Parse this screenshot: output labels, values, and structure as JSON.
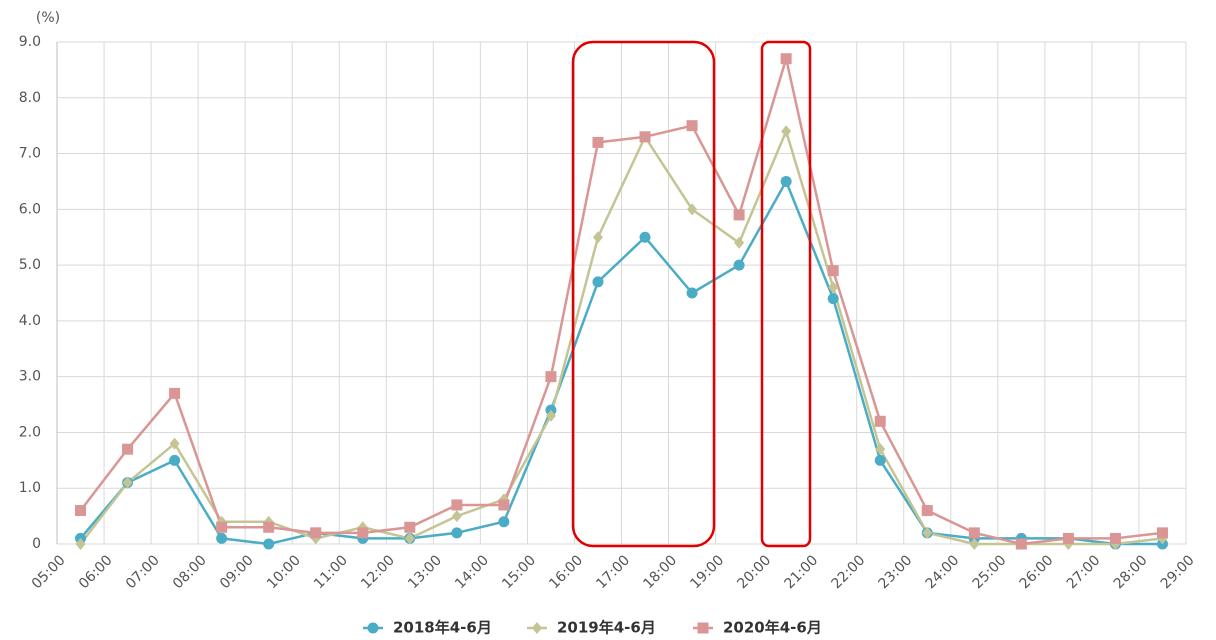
{
  "chart_data": {
    "type": "line",
    "y_unit_label": "(%)",
    "x": [
      5.5,
      6.5,
      7.5,
      8.5,
      9.5,
      10.5,
      11.5,
      12.5,
      13.5,
      14.5,
      15.5,
      16.5,
      17.5,
      18.5,
      19.5,
      20.5,
      21.5,
      22.5,
      23.5,
      24.5,
      25.5,
      26.5,
      27.5,
      28.5
    ],
    "series": [
      {
        "name": "2018年4-6月",
        "color": "#4bacc6",
        "marker": "circle",
        "values": [
          0.1,
          1.1,
          1.5,
          0.1,
          0.0,
          0.2,
          0.1,
          0.1,
          0.2,
          0.4,
          2.4,
          4.7,
          5.5,
          4.5,
          5.0,
          6.5,
          4.4,
          1.5,
          0.2,
          0.1,
          0.1,
          0.1,
          0.0,
          0.0
        ]
      },
      {
        "name": "2019年4-6月",
        "color": "#c4c494",
        "marker": "diamond",
        "values": [
          0.0,
          1.1,
          1.8,
          0.4,
          0.4,
          0.1,
          0.3,
          0.1,
          0.5,
          0.8,
          2.3,
          5.5,
          7.3,
          6.0,
          5.4,
          7.4,
          4.6,
          1.7,
          0.2,
          0.0,
          0.0,
          0.0,
          0.0,
          0.1
        ]
      },
      {
        "name": "2020年4-6月",
        "color": "#d99694",
        "marker": "square",
        "values": [
          0.6,
          1.7,
          2.7,
          0.3,
          0.3,
          0.2,
          0.2,
          0.3,
          0.7,
          0.7,
          3.0,
          7.2,
          7.3,
          7.5,
          5.9,
          8.7,
          4.9,
          2.2,
          0.6,
          0.2,
          0.0,
          0.1,
          0.1,
          0.2
        ]
      }
    ],
    "xlim": [
      5,
      29
    ],
    "xticks": [
      {
        "value": 5,
        "label": "05:00"
      },
      {
        "value": 6,
        "label": "06:00"
      },
      {
        "value": 7,
        "label": "07:00"
      },
      {
        "value": 8,
        "label": "08:00"
      },
      {
        "value": 9,
        "label": "09:00"
      },
      {
        "value": 10,
        "label": "10:00"
      },
      {
        "value": 11,
        "label": "11:00"
      },
      {
        "value": 12,
        "label": "12:00"
      },
      {
        "value": 13,
        "label": "13:00"
      },
      {
        "value": 14,
        "label": "14:00"
      },
      {
        "value": 15,
        "label": "15:00"
      },
      {
        "value": 16,
        "label": "16:00"
      },
      {
        "value": 17,
        "label": "17:00"
      },
      {
        "value": 18,
        "label": "18:00"
      },
      {
        "value": 19,
        "label": "19:00"
      },
      {
        "value": 20,
        "label": "20:00"
      },
      {
        "value": 21,
        "label": "21:00"
      },
      {
        "value": 22,
        "label": "22:00"
      },
      {
        "value": 23,
        "label": "23:00"
      },
      {
        "value": 24,
        "label": "24:00"
      },
      {
        "value": 25,
        "label": "25:00"
      },
      {
        "value": 26,
        "label": "26:00"
      },
      {
        "value": 27,
        "label": "27:00"
      },
      {
        "value": 28,
        "label": "28:00"
      },
      {
        "value": 29,
        "label": "29:00"
      }
    ],
    "ylim": [
      0,
      9
    ],
    "yticks": [
      0,
      {
        "value": 1,
        "label": "1.0"
      },
      {
        "value": 2,
        "label": "2.0"
      },
      {
        "value": 3,
        "label": "3.0"
      },
      {
        "value": 4,
        "label": "4.0"
      },
      {
        "value": 5,
        "label": "5.0"
      },
      {
        "value": 6,
        "label": "6.0"
      },
      {
        "value": 7,
        "label": "7.0"
      },
      {
        "value": 8,
        "label": "8.0"
      },
      {
        "value": 9,
        "label": "9.0"
      }
    ],
    "grid": true
  }
}
